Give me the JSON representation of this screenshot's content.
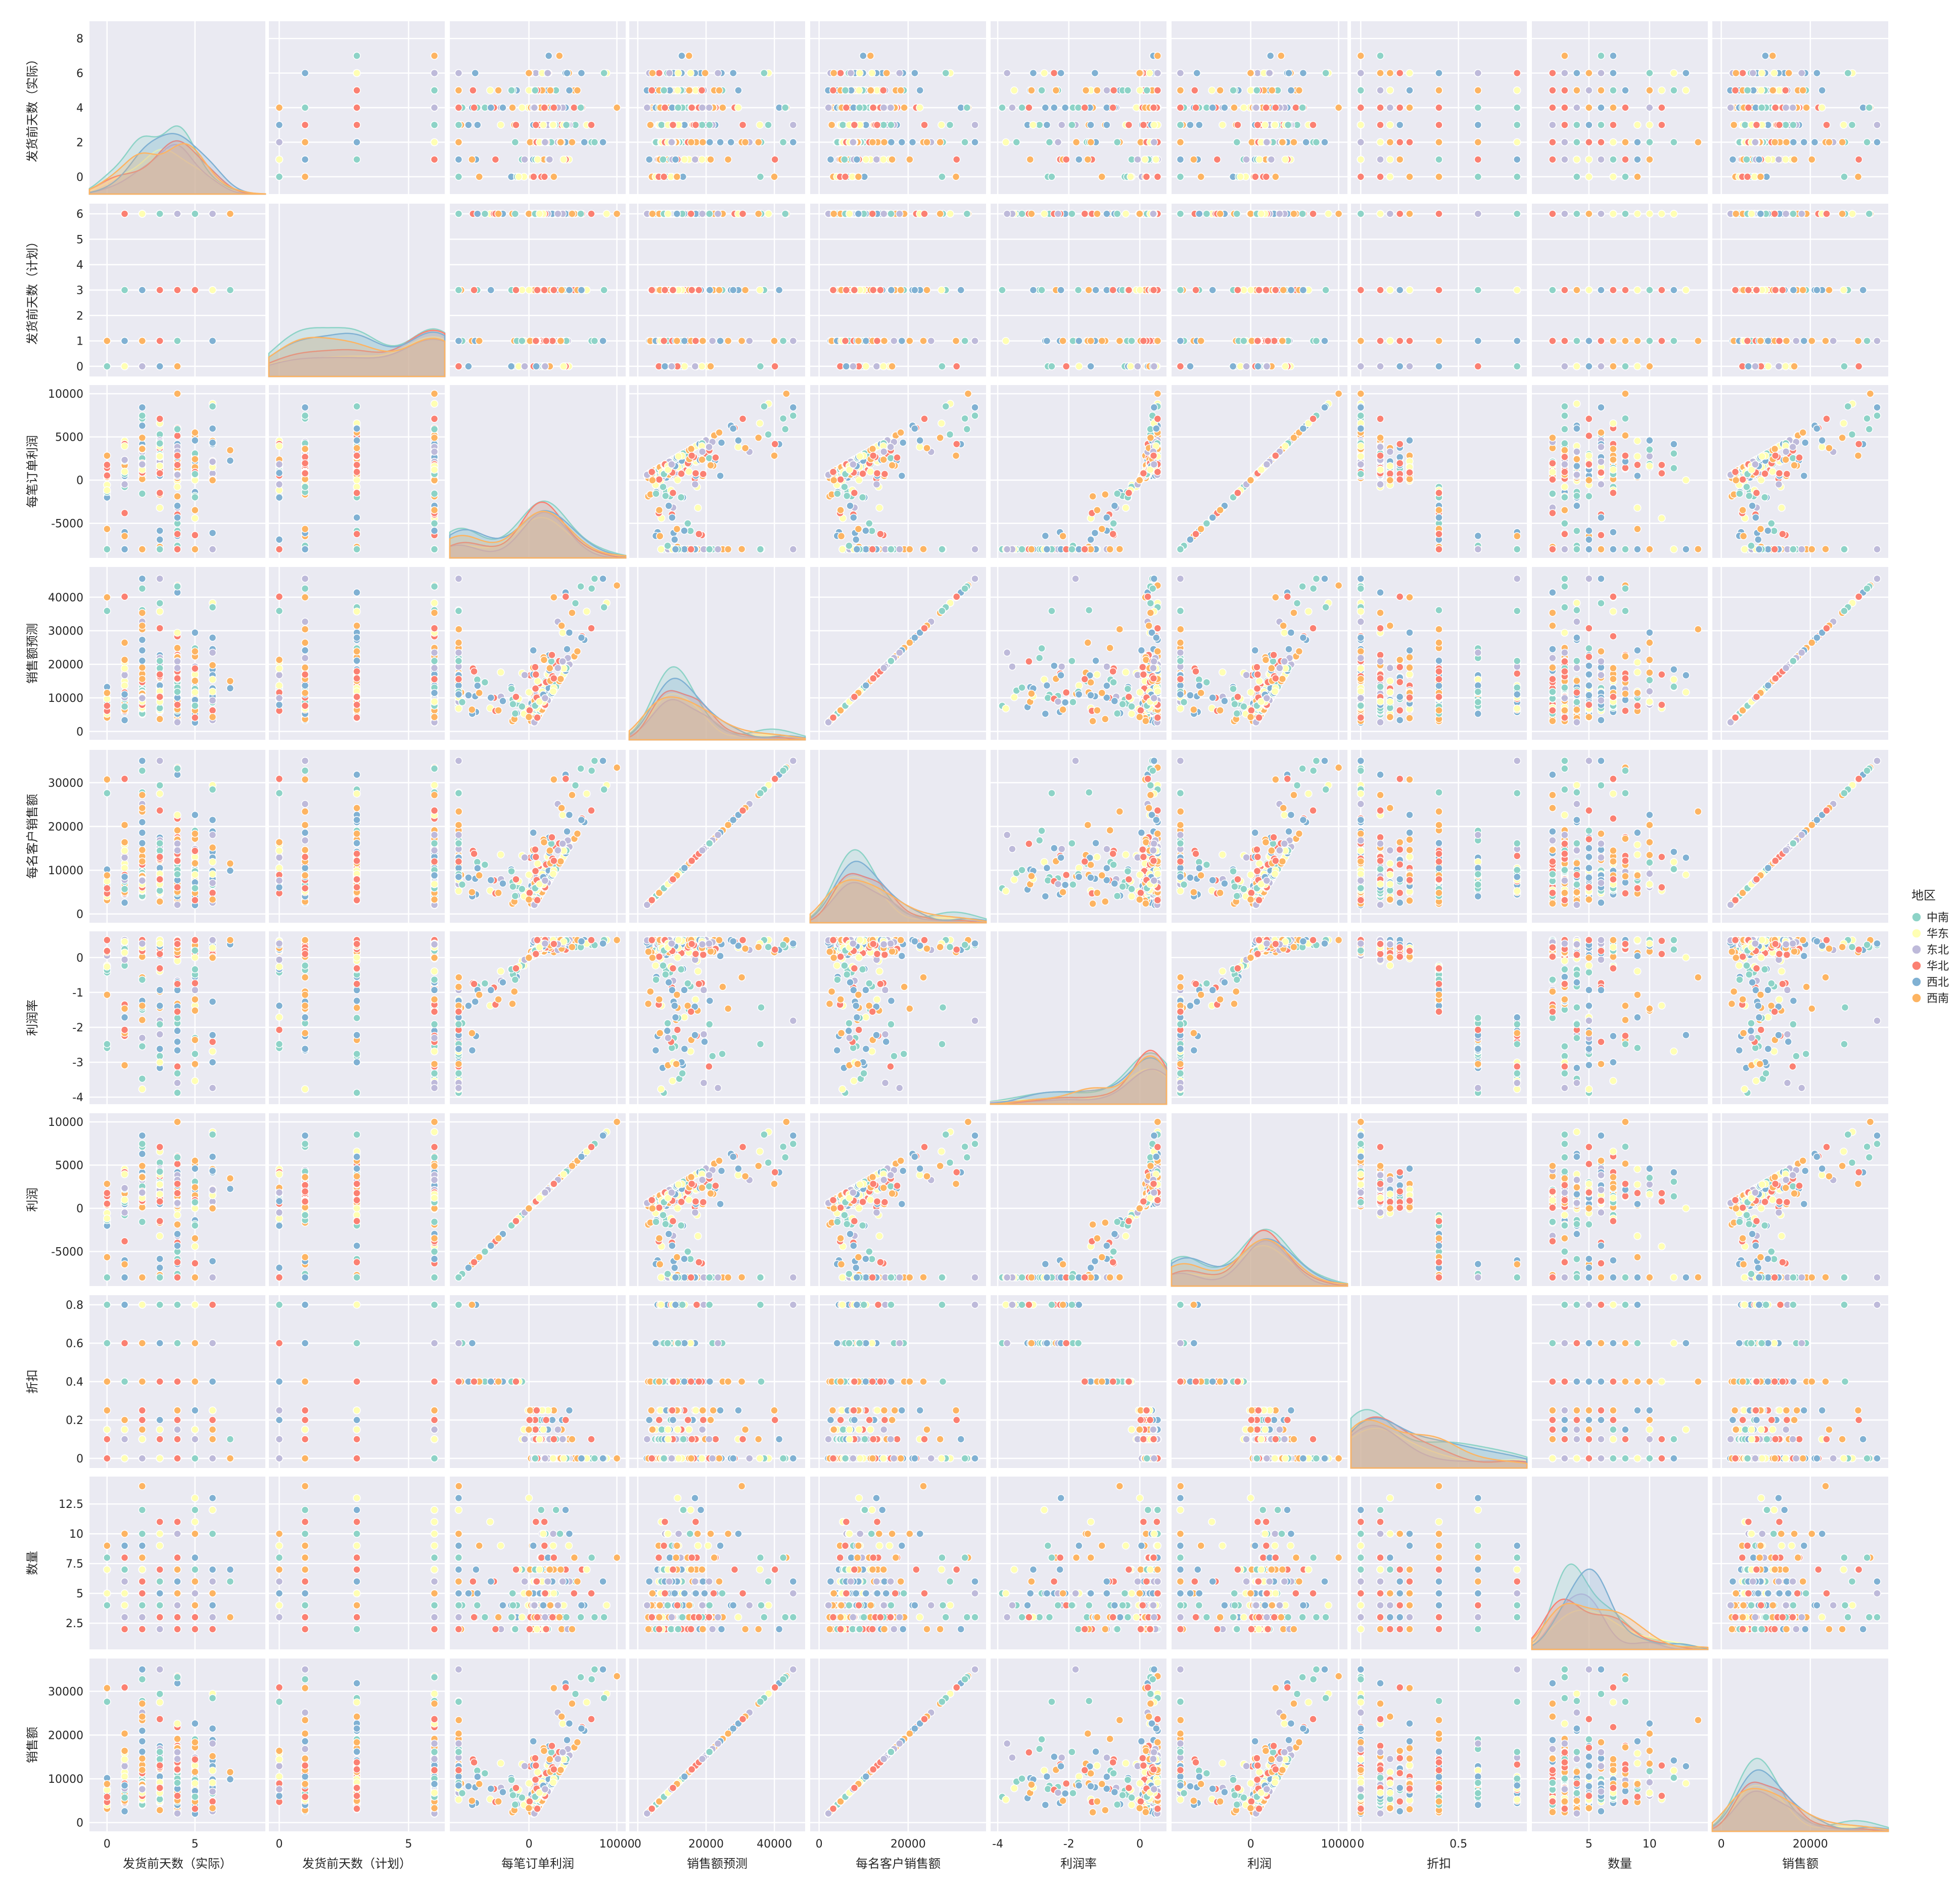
{
  "chart_data": {
    "type": "scatter",
    "subtype": "pairplot",
    "hue": "地区",
    "variables": [
      {
        "key": "ship_actual",
        "label": "发货前天数（实际）",
        "lim": [
          -1,
          9
        ],
        "ticks": [
          0,
          2,
          4,
          6,
          8
        ],
        "xticks": [
          0,
          5
        ]
      },
      {
        "key": "ship_plan",
        "label": "发货前天数（计划）",
        "lim": [
          -0.4,
          6.4
        ],
        "ticks": [
          0,
          1,
          2,
          3,
          4,
          5,
          6
        ],
        "xticks": [
          0,
          5
        ]
      },
      {
        "key": "order_profit",
        "label": "每笔订单利润",
        "lim": [
          -9000,
          11000
        ],
        "ticks": [
          -5000,
          0,
          5000,
          10000
        ],
        "xticks": [
          0,
          10000
        ]
      },
      {
        "key": "sales_forecast",
        "label": "销售额预测",
        "lim": [
          -2500,
          49000
        ],
        "ticks": [
          0,
          10000,
          20000,
          30000,
          40000
        ],
        "xticks": [
          0,
          20000,
          40000
        ]
      },
      {
        "key": "sales_per_customer",
        "label": "每名客户销售额",
        "lim": [
          -2000,
          37500
        ],
        "ticks": [
          0,
          10000,
          20000,
          30000
        ],
        "xticks": [
          0,
          20000
        ]
      },
      {
        "key": "profit_rate",
        "label": "利润率",
        "lim": [
          -4.2,
          0.75
        ],
        "ticks": [
          -4,
          -3,
          -2,
          -1,
          0
        ],
        "xticks": [
          -4,
          -2,
          0
        ]
      },
      {
        "key": "profit",
        "label": "利润",
        "lim": [
          -9000,
          11000
        ],
        "ticks": [
          -5000,
          0,
          5000,
          10000
        ],
        "xticks": [
          0,
          10000
        ]
      },
      {
        "key": "discount",
        "label": "折扣",
        "lim": [
          -0.05,
          0.85
        ],
        "ticks": [
          0.0,
          0.2,
          0.4,
          0.6,
          0.8
        ],
        "xticks": [
          0.0,
          0.5,
          1.0
        ]
      },
      {
        "key": "quantity",
        "label": "数量",
        "lim": [
          0.3,
          14.8
        ],
        "ticks": [
          2.5,
          5.0,
          7.5,
          10.0,
          12.5
        ],
        "xticks": [
          0,
          5,
          10,
          15
        ]
      },
      {
        "key": "sales",
        "label": "销售额",
        "lim": [
          -2000,
          37500
        ],
        "ticks": [
          0,
          10000,
          20000,
          30000
        ],
        "xticks": [
          0,
          20000
        ]
      }
    ],
    "legend": {
      "title": "地区",
      "position": "right",
      "entries": [
        {
          "name": "中南",
          "color": "#8dd3c7"
        },
        {
          "name": "华东",
          "color": "#ffffb3"
        },
        {
          "name": "东北",
          "color": "#bebada"
        },
        {
          "name": "华北",
          "color": "#fb8072"
        },
        {
          "name": "西北",
          "color": "#80b1d3"
        },
        {
          "name": "西南",
          "color": "#fdb462"
        }
      ]
    },
    "grid": true,
    "diagonal": "kde",
    "sample_points": 260
  }
}
